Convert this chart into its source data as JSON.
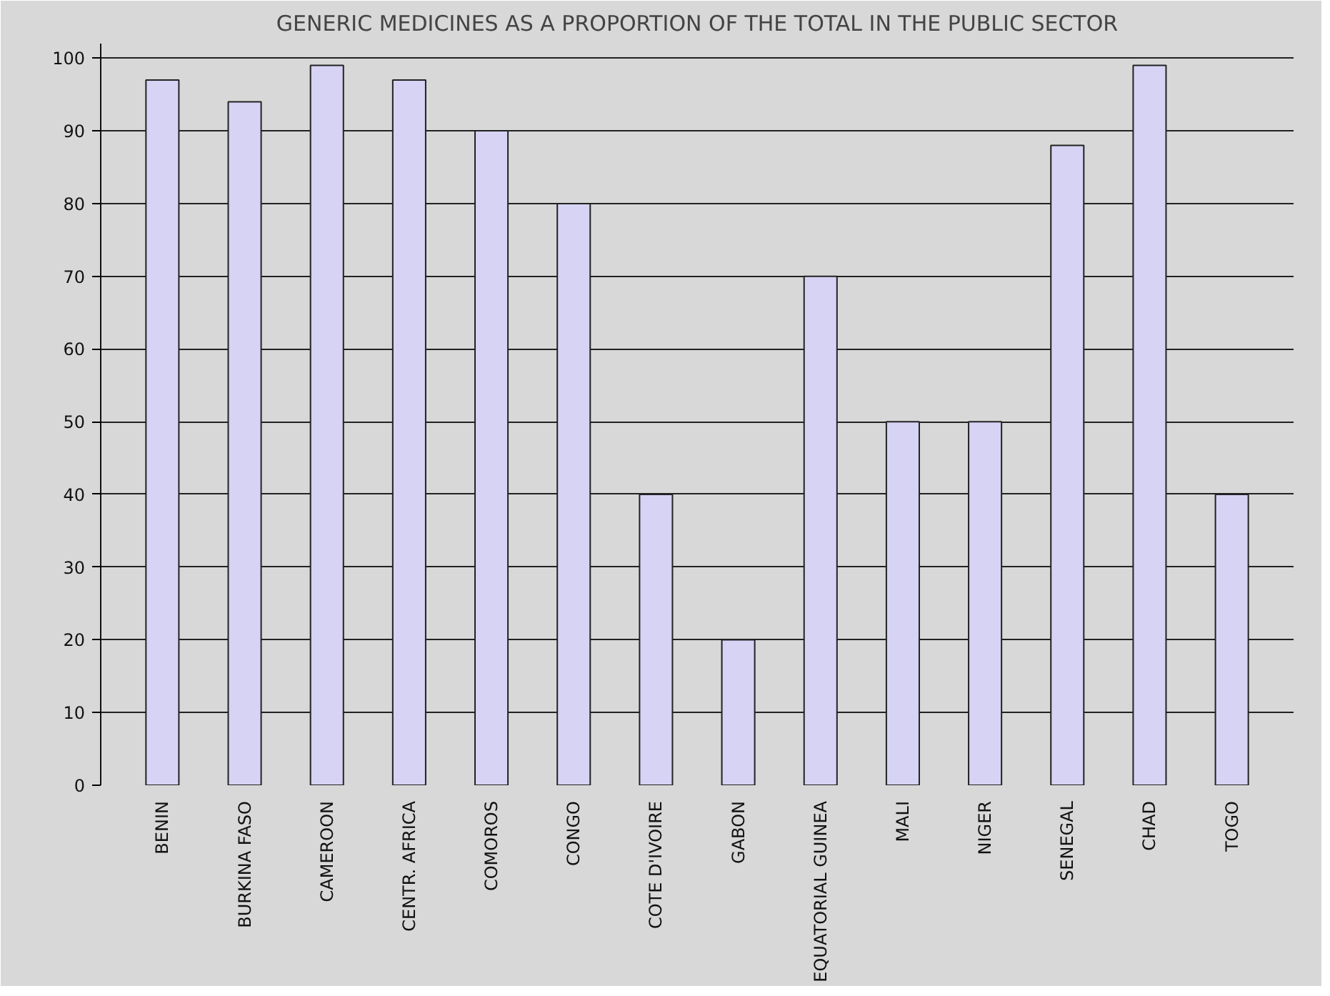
{
  "chart_data": {
    "type": "bar",
    "title": "GENERIC MEDICINES AS A PROPORTION OF THE TOTAL IN THE PUBLIC SECTOR",
    "categories": [
      "BENIN",
      "BURKINA FASO",
      "CAMEROON",
      "CENTR. AFRICA",
      "COMOROS",
      "CONGO",
      "COTE D'IVOIRE",
      "GABON",
      "EQUATORIAL GUINEA",
      "MALI",
      "NIGER",
      "SENEGAL",
      "CHAD",
      "TOGO"
    ],
    "values": [
      97,
      94,
      99,
      97,
      90,
      80,
      40,
      20,
      70,
      50,
      50,
      88,
      99,
      40
    ],
    "color": "#d6d3f5",
    "ylim": [
      0,
      100
    ],
    "yticks": [
      0,
      10,
      20,
      30,
      40,
      50,
      60,
      70,
      80,
      90,
      100
    ],
    "grid": "y"
  }
}
